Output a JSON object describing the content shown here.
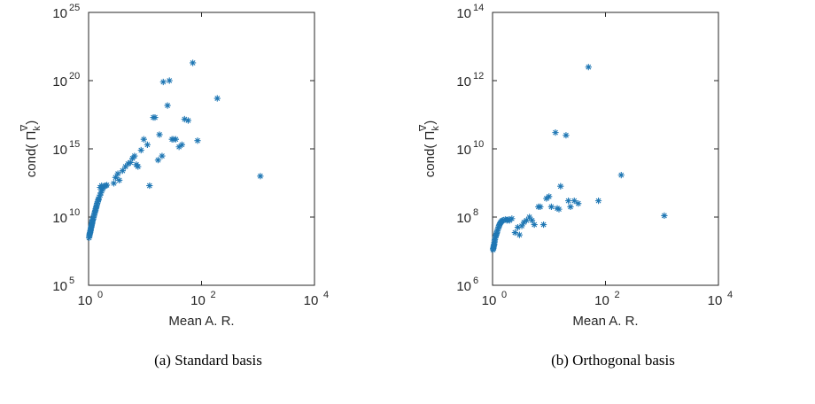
{
  "chart_data": [
    {
      "type": "scatter",
      "caption": "(a) Standard basis",
      "xlabel": "Mean A. R.",
      "ylabel_prefix": "cond(",
      "ylabel_symbol": "Π",
      "ylabel_sub": "k",
      "ylabel_sup": "∇",
      "ylabel_suffix": ")",
      "xscale": "log",
      "yscale": "log",
      "xlim": [
        1,
        10000
      ],
      "ylim": [
        100000,
        1e+25
      ],
      "xticks": [
        {
          "base": "10",
          "exp": "0",
          "value": 1
        },
        {
          "base": "10",
          "exp": "2",
          "value": 100
        },
        {
          "base": "10",
          "exp": "4",
          "value": 10000
        }
      ],
      "yticks": [
        {
          "base": "10",
          "exp": "5",
          "value": 100000.0
        },
        {
          "base": "10",
          "exp": "10",
          "value": 10000000000.0
        },
        {
          "base": "10",
          "exp": "15",
          "value": 1000000000000000.0
        },
        {
          "base": "10",
          "exp": "20",
          "value": 1e+20
        },
        {
          "base": "10",
          "exp": "25",
          "value": 1e+25
        }
      ],
      "marker": "*",
      "color": "#1f77b4",
      "points": [
        [
          1.02,
          300000000.0
        ],
        [
          1.03,
          400000000.0
        ],
        [
          1.04,
          500000000.0
        ],
        [
          1.05,
          600000000.0
        ],
        [
          1.06,
          700000000.0
        ],
        [
          1.07,
          800000000.0
        ],
        [
          1.08,
          1000000000.0
        ],
        [
          1.09,
          1200000000.0
        ],
        [
          1.1,
          1500000000.0
        ],
        [
          1.11,
          1800000000.0
        ],
        [
          1.12,
          2000000000.0
        ],
        [
          1.13,
          2500000000.0
        ],
        [
          1.14,
          3000000000.0
        ],
        [
          1.15,
          3500000000.0
        ],
        [
          1.16,
          4000000000.0
        ],
        [
          1.17,
          5000000000.0
        ],
        [
          1.18,
          6000000000.0
        ],
        [
          1.2,
          7000000000.0
        ],
        [
          1.22,
          9000000000.0
        ],
        [
          1.24,
          12000000000.0
        ],
        [
          1.26,
          15000000000.0
        ],
        [
          1.28,
          20000000000.0
        ],
        [
          1.3,
          25000000000.0
        ],
        [
          1.32,
          30000000000.0
        ],
        [
          1.34,
          40000000000.0
        ],
        [
          1.36,
          50000000000.0
        ],
        [
          1.38,
          60000000000.0
        ],
        [
          1.4,
          80000000000.0
        ],
        [
          1.42,
          100000000000.0
        ],
        [
          1.45,
          130000000000.0
        ],
        [
          1.48,
          170000000000.0
        ],
        [
          1.5,
          200000000000.0
        ],
        [
          1.55,
          300000000000.0
        ],
        [
          1.6,
          400000000000.0
        ],
        [
          1.65,
          600000000000.0
        ],
        [
          1.7,
          800000000000.0
        ],
        [
          1.75,
          1100000000000.0
        ],
        [
          1.8,
          1400000000000.0
        ],
        [
          1.9,
          1800000000000.0
        ],
        [
          2.0,
          2000000000000.0
        ],
        [
          2.1,
          2200000000000.0
        ],
        [
          1.6,
          1500000000000.0
        ],
        [
          1.7,
          2000000000000.0
        ],
        [
          2.8,
          3000000000000.0
        ],
        [
          3.0,
          8000000000000.0
        ],
        [
          3.3,
          15000000000000.0
        ],
        [
          3.5,
          5000000000000.0
        ],
        [
          4.0,
          25000000000000.0
        ],
        [
          4.5,
          50000000000000.0
        ],
        [
          5.0,
          80000000000000.0
        ],
        [
          5.5,
          100000000000000.0
        ],
        [
          6.0,
          200000000000000.0
        ],
        [
          6.5,
          300000000000000.0
        ],
        [
          7.0,
          70000000000000.0
        ],
        [
          7.5,
          50000000000000.0
        ],
        [
          8.5,
          800000000000000.0
        ],
        [
          9.5,
          5000000000000000.0
        ],
        [
          11,
          2000000000000000.0
        ],
        [
          12,
          2000000000000.0
        ],
        [
          14,
          2e+17
        ],
        [
          15,
          2e+17
        ],
        [
          17,
          150000000000000.0
        ],
        [
          18,
          1.1e+16
        ],
        [
          20,
          300000000000000.0
        ],
        [
          21,
          8e+19
        ],
        [
          25,
          1.5e+18
        ],
        [
          27,
          1e+20
        ],
        [
          30,
          5000000000000000.0
        ],
        [
          32,
          5000000000000000.0
        ],
        [
          35,
          5000000000000000.0
        ],
        [
          40,
          1400000000000000.0
        ],
        [
          45,
          2000000000000000.0
        ],
        [
          50,
          1.5e+17
        ],
        [
          58,
          1.2e+17
        ],
        [
          70,
          2e+21
        ],
        [
          85,
          4000000000000000.0
        ],
        [
          190,
          5e+18
        ],
        [
          1100,
          10000000000000.0
        ]
      ]
    },
    {
      "type": "scatter",
      "caption": "(b) Orthogonal basis",
      "xlabel": "Mean A. R.",
      "ylabel_prefix": "cond(",
      "ylabel_symbol": "Π",
      "ylabel_sub": "k",
      "ylabel_sup": "∇",
      "ylabel_suffix": ")",
      "xscale": "log",
      "yscale": "log",
      "xlim": [
        1,
        10000
      ],
      "ylim": [
        1000000,
        100000000000000.0
      ],
      "xticks": [
        {
          "base": "10",
          "exp": "0",
          "value": 1
        },
        {
          "base": "10",
          "exp": "2",
          "value": 100
        },
        {
          "base": "10",
          "exp": "4",
          "value": 10000
        }
      ],
      "yticks": [
        {
          "base": "10",
          "exp": "6",
          "value": 1000000.0
        },
        {
          "base": "10",
          "exp": "8",
          "value": 100000000.0
        },
        {
          "base": "10",
          "exp": "10",
          "value": 10000000000.0
        },
        {
          "base": "10",
          "exp": "12",
          "value": 1000000000000.0
        },
        {
          "base": "10",
          "exp": "14",
          "value": 100000000000000.0
        }
      ],
      "marker": "*",
      "color": "#1f77b4",
      "points": [
        [
          1.02,
          11000000.0
        ],
        [
          1.03,
          12000000.0
        ],
        [
          1.04,
          13000000.0
        ],
        [
          1.05,
          14000000.0
        ],
        [
          1.06,
          15000000.0
        ],
        [
          1.07,
          16000000.0
        ],
        [
          1.08,
          18000000.0
        ],
        [
          1.09,
          20000000.0
        ],
        [
          1.1,
          22000000.0
        ],
        [
          1.12,
          25000000.0
        ],
        [
          1.14,
          28000000.0
        ],
        [
          1.16,
          30000000.0
        ],
        [
          1.18,
          33000000.0
        ],
        [
          1.2,
          36000000.0
        ],
        [
          1.22,
          40000000.0
        ],
        [
          1.25,
          45000000.0
        ],
        [
          1.28,
          50000000.0
        ],
        [
          1.3,
          55000000.0
        ],
        [
          1.33,
          60000000.0
        ],
        [
          1.36,
          65000000.0
        ],
        [
          1.4,
          70000000.0
        ],
        [
          1.45,
          75000000.0
        ],
        [
          1.5,
          80000000.0
        ],
        [
          1.6,
          82000000.0
        ],
        [
          1.7,
          85000000.0
        ],
        [
          1.8,
          80000000.0
        ],
        [
          1.9,
          85000000.0
        ],
        [
          2.0,
          80000000.0
        ],
        [
          2.2,
          90000000.0
        ],
        [
          2.5,
          35000000.0
        ],
        [
          2.8,
          50000000.0
        ],
        [
          3.0,
          30000000.0
        ],
        [
          3.3,
          55000000.0
        ],
        [
          3.6,
          70000000.0
        ],
        [
          4.0,
          80000000.0
        ],
        [
          4.5,
          100000000.0
        ],
        [
          5.0,
          80000000.0
        ],
        [
          5.5,
          60000000.0
        ],
        [
          6.5,
          200000000.0
        ],
        [
          7.0,
          200000000.0
        ],
        [
          8.0,
          60000000.0
        ],
        [
          9.0,
          350000000.0
        ],
        [
          10,
          400000000.0
        ],
        [
          11,
          200000000.0
        ],
        [
          13,
          30000000000.0
        ],
        [
          14,
          180000000.0
        ],
        [
          15,
          170000000.0
        ],
        [
          16,
          800000000.0
        ],
        [
          20,
          25000000000.0
        ],
        [
          22,
          300000000.0
        ],
        [
          24,
          200000000.0
        ],
        [
          28,
          300000000.0
        ],
        [
          33,
          250000000.0
        ],
        [
          50,
          2500000000000.0
        ],
        [
          75,
          300000000.0
        ],
        [
          190,
          1700000000.0
        ],
        [
          1100,
          110000000.0
        ]
      ]
    }
  ]
}
